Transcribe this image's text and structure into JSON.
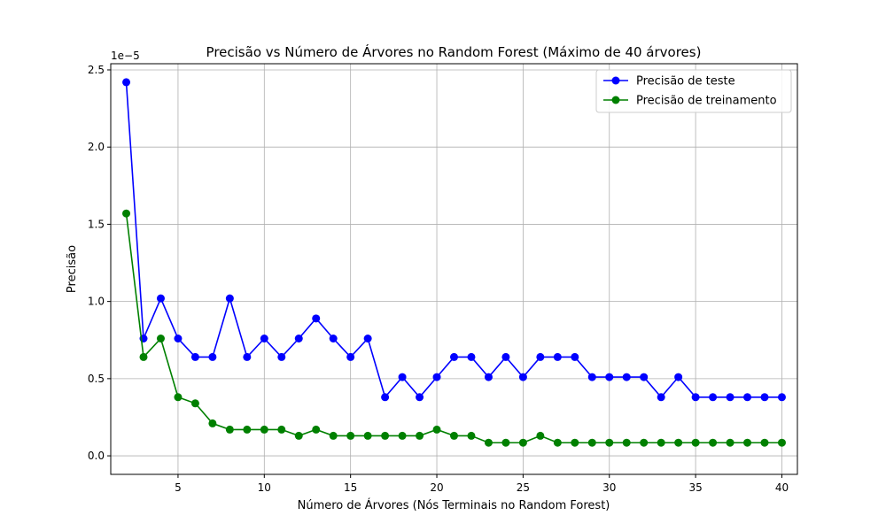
{
  "chart_data": {
    "type": "line",
    "title": "Precisão vs Número de Árvores no Random Forest (Máximo de 40 árvores)",
    "xlabel": "Número de Árvores (Nós Terminais no Random Forest)",
    "ylabel": "Precisão",
    "y_offset_label": "1e−5",
    "xlim": [
      1.1,
      40.9
    ],
    "ylim": [
      -0.12,
      2.54
    ],
    "x_ticks": [
      5,
      10,
      15,
      20,
      25,
      30,
      35,
      40
    ],
    "x_tick_labels": [
      "5",
      "10",
      "15",
      "20",
      "25",
      "30",
      "35",
      "40"
    ],
    "y_ticks": [
      0.0,
      0.5,
      1.0,
      1.5,
      2.0,
      2.5
    ],
    "y_tick_labels": [
      "0.0",
      "0.5",
      "1.0",
      "1.5",
      "2.0",
      "2.5"
    ],
    "grid": true,
    "legend_position": "top-right",
    "x": [
      2,
      3,
      4,
      5,
      6,
      7,
      8,
      9,
      10,
      11,
      12,
      13,
      14,
      15,
      16,
      17,
      18,
      19,
      20,
      21,
      22,
      23,
      24,
      25,
      26,
      27,
      28,
      29,
      30,
      31,
      32,
      33,
      34,
      35,
      36,
      37,
      38,
      39,
      40
    ],
    "series": [
      {
        "name": "Precisão de teste",
        "color": "#0000ff",
        "values": [
          2.42,
          0.76,
          1.02,
          0.76,
          0.64,
          0.64,
          1.02,
          0.64,
          0.76,
          0.64,
          0.76,
          0.89,
          0.76,
          0.64,
          0.76,
          0.38,
          0.51,
          0.38,
          0.51,
          0.64,
          0.64,
          0.51,
          0.64,
          0.51,
          0.64,
          0.64,
          0.64,
          0.51,
          0.51,
          0.51,
          0.51,
          0.38,
          0.51,
          0.38,
          0.38,
          0.38,
          0.38,
          0.38,
          0.38
        ]
      },
      {
        "name": "Precisão de treinamento",
        "color": "#008000",
        "values": [
          1.57,
          0.64,
          0.76,
          0.38,
          0.34,
          0.21,
          0.17,
          0.17,
          0.17,
          0.17,
          0.13,
          0.17,
          0.13,
          0.13,
          0.13,
          0.13,
          0.13,
          0.13,
          0.17,
          0.13,
          0.13,
          0.085,
          0.085,
          0.085,
          0.13,
          0.085,
          0.085,
          0.085,
          0.085,
          0.085,
          0.085,
          0.085,
          0.085,
          0.085,
          0.085,
          0.085,
          0.085,
          0.085,
          0.085
        ]
      }
    ]
  }
}
